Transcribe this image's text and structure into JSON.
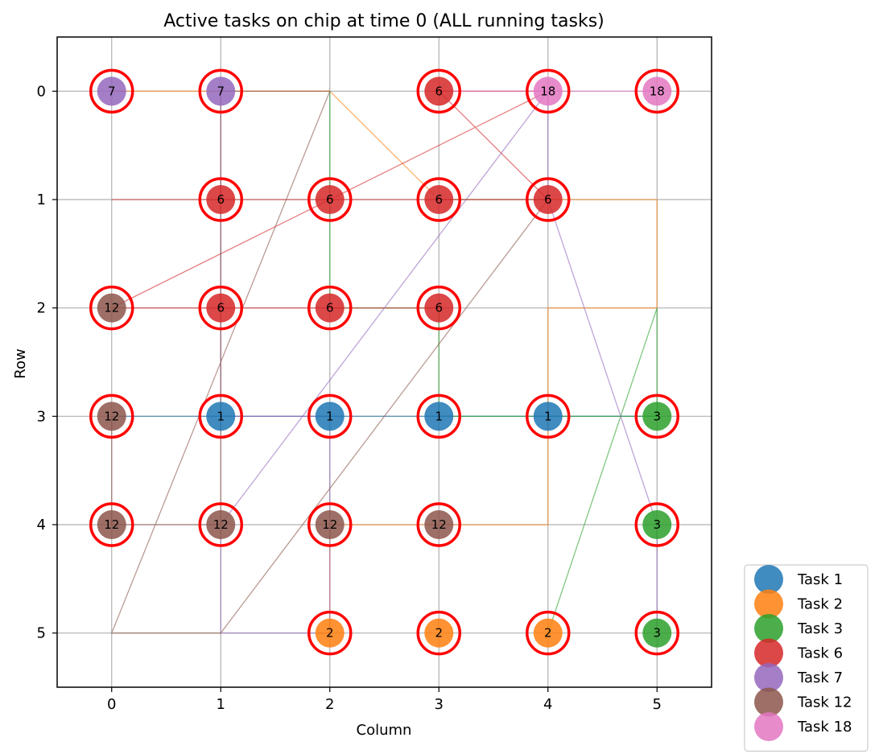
{
  "chart_data": {
    "type": "scatter",
    "title": "Active tasks on chip at time 0 (ALL running tasks)",
    "xlabel": "Column",
    "ylabel": "Row",
    "xlim": [
      -0.5,
      5.5
    ],
    "ylim": [
      5.5,
      -0.5
    ],
    "x_ticks": [
      "0",
      "1",
      "2",
      "3",
      "4",
      "5"
    ],
    "y_ticks": [
      "0",
      "1",
      "2",
      "3",
      "4",
      "5"
    ],
    "grid": true,
    "legend_position": "outside-bottom-right",
    "series": [
      {
        "name": "Task 1",
        "color": "#1f77b4",
        "label": "1",
        "points": [
          [
            1,
            3
          ],
          [
            2,
            3
          ],
          [
            3,
            3
          ],
          [
            4,
            3
          ]
        ],
        "route": [
          [
            0,
            3
          ],
          [
            1,
            3
          ],
          [
            2,
            3
          ],
          [
            3,
            3
          ],
          [
            4,
            3
          ],
          [
            5,
            3
          ]
        ]
      },
      {
        "name": "Task 2",
        "color": "#ff7f0e",
        "label": "2",
        "points": [
          [
            2,
            5
          ],
          [
            3,
            5
          ],
          [
            4,
            5
          ]
        ],
        "route": [
          [
            0,
            0
          ],
          [
            1,
            0
          ],
          [
            2,
            0
          ],
          [
            3,
            1
          ],
          [
            4,
            1
          ],
          [
            5,
            1
          ],
          [
            5,
            2
          ],
          [
            4,
            2
          ],
          [
            4,
            3
          ],
          [
            4,
            4
          ],
          [
            3,
            4
          ],
          [
            2,
            4
          ],
          [
            2,
            5
          ]
        ]
      },
      {
        "name": "Task 3",
        "color": "#2ca02c",
        "label": "3",
        "points": [
          [
            5,
            3
          ],
          [
            5,
            4
          ],
          [
            5,
            5
          ]
        ],
        "route": [
          [
            2,
            0
          ],
          [
            2,
            1
          ],
          [
            2,
            2
          ],
          [
            3,
            2
          ],
          [
            3,
            3
          ],
          [
            4,
            3
          ],
          [
            5,
            3
          ],
          [
            5,
            2
          ],
          [
            4,
            5
          ]
        ]
      },
      {
        "name": "Task 6",
        "color": "#d62728",
        "label": "6",
        "points": [
          [
            3,
            0
          ],
          [
            1,
            1
          ],
          [
            2,
            1
          ],
          [
            3,
            1
          ],
          [
            4,
            1
          ],
          [
            1,
            2
          ],
          [
            2,
            2
          ],
          [
            3,
            2
          ]
        ],
        "route": [
          [
            0,
            1
          ],
          [
            1,
            1
          ],
          [
            2,
            1
          ],
          [
            3,
            1
          ],
          [
            4,
            1
          ],
          [
            3,
            0
          ],
          [
            4,
            0
          ],
          [
            0,
            2
          ],
          [
            1,
            2
          ],
          [
            2,
            2
          ],
          [
            3,
            2
          ]
        ]
      },
      {
        "name": "Task 7",
        "color": "#9467bd",
        "label": "7",
        "points": [
          [
            0,
            0
          ],
          [
            1,
            0
          ]
        ],
        "route": [
          [
            1,
            0
          ],
          [
            1,
            1
          ],
          [
            1,
            2
          ],
          [
            1,
            3
          ],
          [
            2,
            3
          ],
          [
            2,
            4
          ],
          [
            2,
            5
          ],
          [
            1,
            5
          ],
          [
            1,
            4
          ],
          [
            4,
            0
          ],
          [
            4,
            1
          ],
          [
            5,
            4
          ],
          [
            5,
            5
          ]
        ]
      },
      {
        "name": "Task 12",
        "color": "#8c564b",
        "label": "12",
        "points": [
          [
            0,
            2
          ],
          [
            0,
            3
          ],
          [
            0,
            4
          ],
          [
            1,
            4
          ],
          [
            2,
            4
          ],
          [
            3,
            4
          ]
        ],
        "route": [
          [
            0,
            3
          ],
          [
            0,
            4
          ],
          [
            1,
            4
          ],
          [
            1,
            3
          ],
          [
            1,
            0
          ],
          [
            2,
            0
          ],
          [
            0,
            5
          ],
          [
            1,
            5
          ],
          [
            4,
            1
          ],
          [
            3,
            1
          ]
        ]
      },
      {
        "name": "Task 18",
        "color": "#e377c2",
        "label": "18",
        "points": [
          [
            4,
            0
          ],
          [
            5,
            0
          ]
        ],
        "route": [
          [
            3,
            0
          ],
          [
            4,
            0
          ],
          [
            5,
            0
          ]
        ]
      }
    ]
  }
}
